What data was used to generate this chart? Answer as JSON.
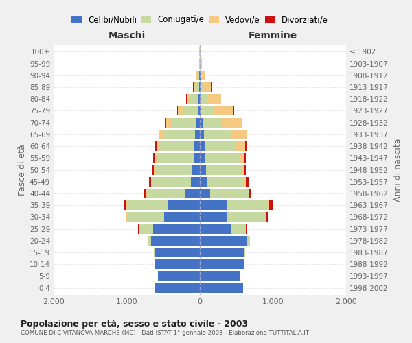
{
  "age_groups": [
    "100+",
    "95-99",
    "90-94",
    "85-89",
    "80-84",
    "75-79",
    "70-74",
    "65-69",
    "60-64",
    "55-59",
    "50-54",
    "45-49",
    "40-44",
    "35-39",
    "30-34",
    "25-29",
    "20-24",
    "15-19",
    "10-14",
    "5-9",
    "0-4"
  ],
  "birth_years": [
    "≤ 1902",
    "1903-1907",
    "1908-1912",
    "1913-1917",
    "1918-1922",
    "1923-1927",
    "1928-1932",
    "1933-1937",
    "1938-1942",
    "1943-1947",
    "1948-1952",
    "1953-1957",
    "1958-1962",
    "1963-1967",
    "1968-1972",
    "1973-1977",
    "1978-1982",
    "1983-1987",
    "1988-1992",
    "1993-1997",
    "1998-2002"
  ],
  "colors": {
    "celibi": "#4472c4",
    "coniugati": "#c5d9a0",
    "vedovi": "#f5c981",
    "divorziati": "#cc1111"
  },
  "maschi": {
    "celibi": [
      2,
      4,
      8,
      12,
      15,
      25,
      45,
      65,
      75,
      85,
      100,
      120,
      200,
      430,
      490,
      640,
      670,
      610,
      610,
      575,
      610
    ],
    "coniugati": [
      2,
      4,
      18,
      45,
      115,
      210,
      340,
      420,
      470,
      490,
      500,
      530,
      520,
      570,
      510,
      195,
      35,
      8,
      4,
      2,
      2
    ],
    "vedovi": [
      1,
      4,
      18,
      32,
      52,
      65,
      75,
      65,
      48,
      38,
      22,
      13,
      9,
      4,
      4,
      2,
      4,
      2,
      0,
      0,
      0
    ],
    "divorziati": [
      0,
      0,
      0,
      2,
      4,
      7,
      9,
      14,
      18,
      22,
      28,
      32,
      28,
      28,
      13,
      4,
      2,
      0,
      0,
      0,
      0
    ]
  },
  "femmine": {
    "celibi": [
      1,
      3,
      7,
      10,
      15,
      22,
      35,
      55,
      65,
      75,
      85,
      105,
      145,
      370,
      370,
      420,
      640,
      610,
      610,
      540,
      590
    ],
    "coniugati": [
      2,
      4,
      13,
      38,
      85,
      170,
      270,
      370,
      420,
      460,
      480,
      510,
      520,
      570,
      530,
      205,
      38,
      8,
      4,
      2,
      2
    ],
    "vedovi": [
      5,
      18,
      55,
      115,
      190,
      270,
      270,
      210,
      135,
      75,
      38,
      18,
      9,
      7,
      4,
      2,
      4,
      2,
      0,
      0,
      0
    ],
    "divorziati": [
      0,
      0,
      2,
      3,
      4,
      7,
      9,
      14,
      22,
      18,
      28,
      32,
      28,
      48,
      38,
      9,
      2,
      0,
      0,
      0,
      0
    ]
  },
  "xlim": 2000,
  "xticks": [
    -2000,
    -1000,
    0,
    1000,
    2000
  ],
  "xticklabels": [
    "2.000",
    "1.000",
    "0",
    "1.000",
    "2.000"
  ],
  "title_main": "Popolazione per età, sesso e stato civile - 2003",
  "title_sub": "COMUNE DI CIVITANOVA MARCHE (MC) - Dati ISTAT 1° gennaio 2003 - Elaborazione TUTTITALIA.IT",
  "ylabel_left": "Fasce di età",
  "ylabel_right": "Anni di nascita",
  "label_maschi": "Maschi",
  "label_femmine": "Femmine",
  "legend_labels": [
    "Celibi/Nubili",
    "Coniugati/e",
    "Vedovi/e",
    "Divorziati/e"
  ],
  "bg_color": "#f0f0f0",
  "plot_bg": "#ffffff"
}
